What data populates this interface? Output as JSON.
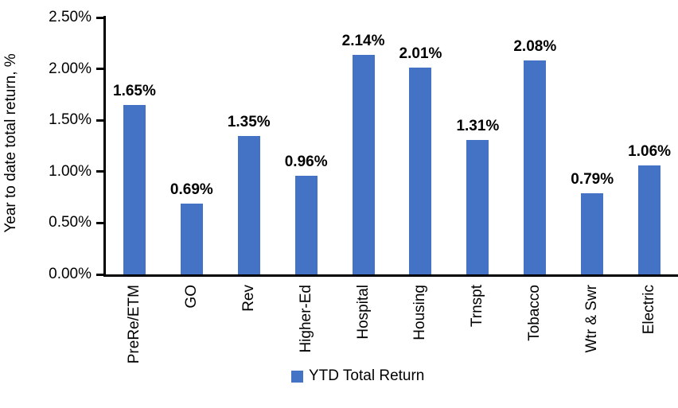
{
  "chart_data": {
    "type": "bar",
    "title": "",
    "xlabel": "",
    "ylabel": "Year to date total return, %",
    "categories": [
      "PreRe/ETM",
      "GO",
      "Rev",
      "Higher-Ed",
      "Hospital",
      "Housing",
      "Trnspt",
      "Tobacco",
      "Wtr & Swr",
      "Electric"
    ],
    "series": [
      {
        "name": "YTD Total Return",
        "values": [
          1.65,
          0.69,
          1.35,
          0.96,
          2.14,
          2.01,
          1.31,
          2.08,
          0.79,
          1.06
        ]
      }
    ],
    "data_labels": [
      "1.65%",
      "0.69%",
      "1.35%",
      "0.96%",
      "2.14%",
      "2.01%",
      "1.31%",
      "2.08%",
      "0.79%",
      "1.06%"
    ],
    "y_ticks": [
      "0.00%",
      "0.50%",
      "1.00%",
      "1.50%",
      "2.00%",
      "2.50%"
    ],
    "ylim": [
      0,
      2.5
    ],
    "grid": false,
    "legend": {
      "position": "bottom",
      "entries": [
        "YTD Total Return"
      ]
    },
    "bar_color": "#4472C4",
    "axis_color": "#000000",
    "text_color": "#000000"
  }
}
